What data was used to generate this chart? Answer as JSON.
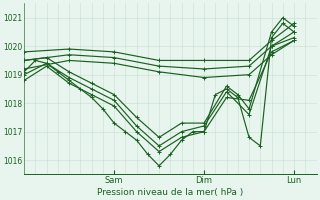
{
  "xlabel": "Pression niveau de la mer( hPa )",
  "bg_color": "#e8f4ee",
  "grid_color_v": "#c8ddd0",
  "grid_color_h": "#c8ddd0",
  "line_color": "#1a6020",
  "yticks": [
    1016,
    1017,
    1018,
    1019,
    1020,
    1021
  ],
  "ylim": [
    1015.5,
    1021.5
  ],
  "xlim": [
    0,
    78
  ],
  "xtick_positions": [
    24,
    48,
    72
  ],
  "xtick_labels": [
    "Sam",
    "Dim",
    "Lun"
  ],
  "series": [
    {
      "x": [
        0,
        3,
        6,
        9,
        12,
        15,
        18,
        21,
        24,
        27,
        30,
        33,
        36,
        39,
        42,
        45,
        48,
        51,
        54,
        57,
        60,
        63,
        66,
        69,
        72
      ],
      "y": [
        1019.1,
        1019.5,
        1019.4,
        1019.1,
        1018.8,
        1018.5,
        1018.2,
        1017.8,
        1017.3,
        1017.0,
        1016.7,
        1016.2,
        1015.8,
        1016.2,
        1016.7,
        1017.0,
        1017.0,
        1018.3,
        1018.5,
        1018.2,
        1016.8,
        1016.5,
        1020.3,
        1020.8,
        1020.5
      ]
    },
    {
      "x": [
        0,
        6,
        12,
        18,
        24,
        30,
        36,
        42,
        48,
        54,
        57,
        60,
        66,
        69,
        72
      ],
      "y": [
        1019.5,
        1019.6,
        1019.1,
        1018.7,
        1018.3,
        1017.5,
        1016.8,
        1017.3,
        1017.3,
        1018.6,
        1018.3,
        1017.8,
        1020.5,
        1021.0,
        1020.7
      ]
    },
    {
      "x": [
        0,
        6,
        12,
        18,
        24,
        30,
        36,
        42,
        48,
        54,
        60,
        66,
        72
      ],
      "y": [
        1019.0,
        1019.4,
        1018.9,
        1018.5,
        1018.1,
        1017.2,
        1016.5,
        1017.0,
        1017.2,
        1018.4,
        1017.6,
        1020.0,
        1020.3
      ]
    },
    {
      "x": [
        0,
        6,
        12,
        18,
        24,
        30,
        36,
        42,
        48,
        54,
        60,
        66,
        72
      ],
      "y": [
        1018.8,
        1019.3,
        1018.7,
        1018.3,
        1017.9,
        1017.0,
        1016.3,
        1016.8,
        1017.0,
        1018.2,
        1018.1,
        1019.8,
        1020.2
      ]
    },
    {
      "x": [
        0,
        12,
        24,
        36,
        48,
        60,
        66,
        72
      ],
      "y": [
        1019.8,
        1019.9,
        1019.8,
        1019.5,
        1019.5,
        1019.5,
        1020.2,
        1020.8
      ]
    },
    {
      "x": [
        0,
        12,
        24,
        36,
        48,
        60,
        66,
        72
      ],
      "y": [
        1019.5,
        1019.7,
        1019.6,
        1019.3,
        1019.2,
        1019.3,
        1020.0,
        1020.5
      ]
    },
    {
      "x": [
        0,
        12,
        24,
        36,
        48,
        60,
        66,
        72
      ],
      "y": [
        1019.2,
        1019.5,
        1019.4,
        1019.1,
        1018.9,
        1019.0,
        1019.7,
        1020.2
      ]
    }
  ]
}
